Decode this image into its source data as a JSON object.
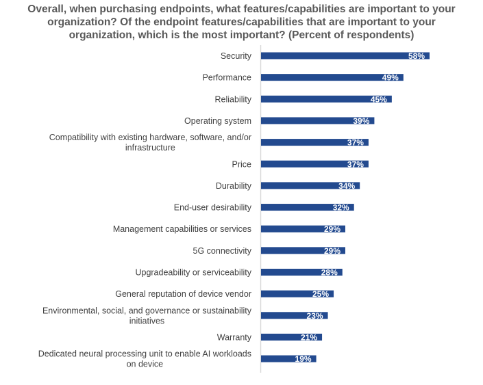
{
  "chart_data": {
    "type": "bar",
    "orientation": "horizontal",
    "title_lines": [
      "Overall, when purchasing endpoints, what features/capabilities are important to your",
      "organization? Of the endpoint features/capabilities that are important to your",
      "organization, which is the most important?  (Percent of respondents)"
    ],
    "categories": [
      [
        "Security"
      ],
      [
        "Performance"
      ],
      [
        "Reliability"
      ],
      [
        "Operating system"
      ],
      [
        "Compatibility with existing hardware, software, and/or",
        "infrastructure"
      ],
      [
        "Price"
      ],
      [
        "Durability"
      ],
      [
        "End-user desirability"
      ],
      [
        "Management capabilities or services"
      ],
      [
        "5G connectivity"
      ],
      [
        "Upgradeability or serviceability"
      ],
      [
        "General reputation of device vendor"
      ],
      [
        "Environmental, social, and governance or sustainability",
        "initiatives"
      ],
      [
        "Warranty"
      ],
      [
        "Dedicated neural processing unit to enable AI workloads",
        "on device"
      ]
    ],
    "values": [
      58,
      49,
      45,
      39,
      37,
      37,
      34,
      32,
      29,
      29,
      28,
      25,
      23,
      21,
      19
    ],
    "value_suffix": "%",
    "xlim": [
      0,
      100
    ],
    "xlabel": "",
    "ylabel": "",
    "grid": false,
    "legend": "none",
    "bar_color": "#234A8F"
  }
}
